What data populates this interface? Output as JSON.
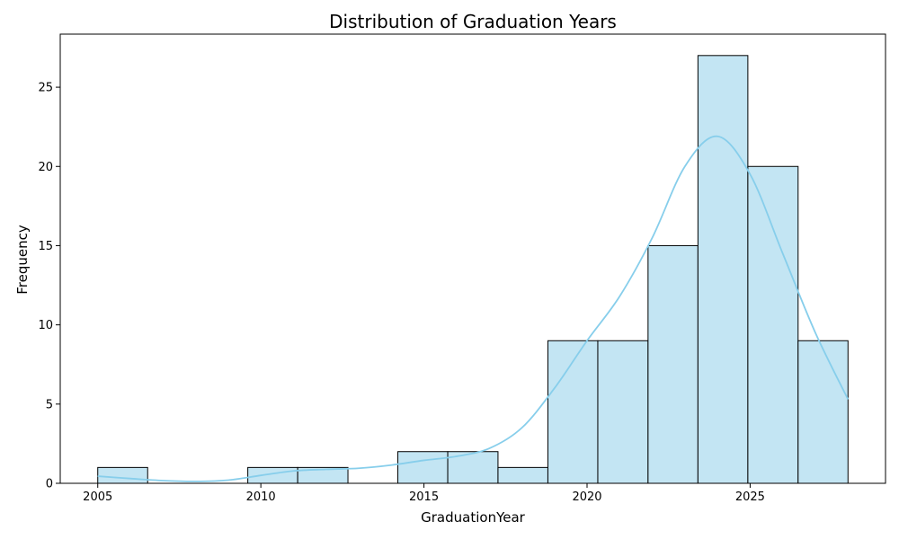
{
  "chart_data": {
    "type": "bar",
    "subtype": "histogram",
    "title": "Distribution of Graduation Years",
    "xlabel": "GraduationYear",
    "ylabel": "Frequency",
    "xlim": [
      2003.85,
      2029.15
    ],
    "ylim": [
      0,
      28.35
    ],
    "x_ticks": [
      2005,
      2010,
      2015,
      2020,
      2025
    ],
    "y_ticks": [
      0,
      5,
      10,
      15,
      20,
      25
    ],
    "bins": [
      {
        "x0": 2005.0,
        "x1": 2006.53,
        "count": 1
      },
      {
        "x0": 2006.53,
        "x1": 2008.07,
        "count": 0
      },
      {
        "x0": 2008.07,
        "x1": 2009.6,
        "count": 0
      },
      {
        "x0": 2009.6,
        "x1": 2011.13,
        "count": 1
      },
      {
        "x0": 2011.13,
        "x1": 2012.67,
        "count": 1
      },
      {
        "x0": 2012.67,
        "x1": 2014.2,
        "count": 0
      },
      {
        "x0": 2014.2,
        "x1": 2015.73,
        "count": 2
      },
      {
        "x0": 2015.73,
        "x1": 2017.27,
        "count": 2
      },
      {
        "x0": 2017.27,
        "x1": 2018.8,
        "count": 1
      },
      {
        "x0": 2018.8,
        "x1": 2020.33,
        "count": 9
      },
      {
        "x0": 2020.33,
        "x1": 2021.87,
        "count": 9
      },
      {
        "x0": 2021.87,
        "x1": 2023.4,
        "count": 15
      },
      {
        "x0": 2023.4,
        "x1": 2024.93,
        "count": 27
      },
      {
        "x0": 2024.93,
        "x1": 2026.47,
        "count": 20
      },
      {
        "x0": 2026.47,
        "x1": 2028.0,
        "count": 9
      }
    ],
    "kde": {
      "x": [
        2005,
        2006,
        2007,
        2008,
        2009,
        2010,
        2011,
        2012,
        2013,
        2014,
        2015,
        2016,
        2017,
        2018,
        2019,
        2020,
        2021,
        2022,
        2023,
        2024,
        2025,
        2026,
        2027,
        2028
      ],
      "y": [
        0.45,
        0.3,
        0.17,
        0.12,
        0.2,
        0.5,
        0.78,
        0.88,
        0.95,
        1.15,
        1.45,
        1.7,
        2.2,
        3.5,
        6.0,
        9.0,
        11.8,
        15.5,
        20.0,
        21.9,
        19.5,
        14.5,
        9.5,
        5.3
      ]
    },
    "colors": {
      "bar_fill": "#c3e5f3",
      "bar_edge": "#000000",
      "kde_line": "#87ceeb"
    },
    "grid": false,
    "legend": false
  }
}
